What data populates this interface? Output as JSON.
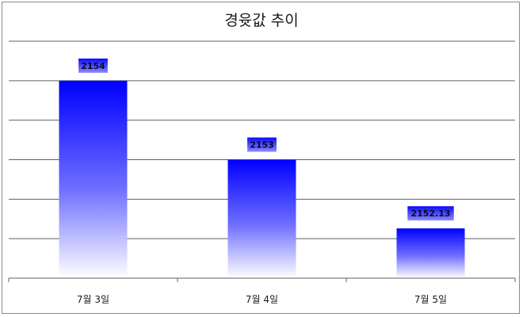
{
  "chart_data": {
    "type": "bar",
    "title": "경윳값 추이",
    "categories": [
      "7월 3일",
      "7월 4일",
      "7월 5일"
    ],
    "values": [
      2154,
      2153,
      2152.13
    ],
    "data_labels": [
      "2154",
      "2153",
      "2152.13"
    ],
    "ylim": [
      2151.5,
      2154.5
    ],
    "grid": true,
    "legend": "none",
    "colors": {
      "bar_top": "#0000ff",
      "bar_bottom": "#ffffff",
      "grid": "#606060",
      "label_bg": "#1a1aff"
    }
  }
}
